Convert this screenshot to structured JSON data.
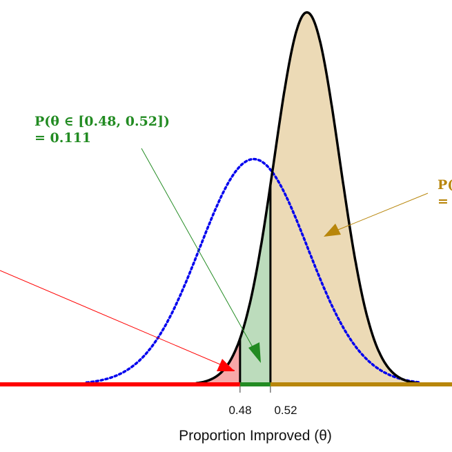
{
  "chart_data": {
    "type": "area",
    "xlabel": "Proportion Improved (θ)",
    "xlim": [
      0.164,
      0.759
    ],
    "x_ticks": [
      "0.48",
      "0.52"
    ],
    "x_tick_values": [
      0.48,
      0.52
    ],
    "grid": false,
    "series": [
      {
        "kind": "posterior",
        "style": "solid black line, shaded by region",
        "mean": 0.568,
        "sd": 0.043,
        "peak_density": 9.28
      },
      {
        "kind": "prior",
        "style": "blue dotted line",
        "mean": 0.498,
        "sd": 0.071,
        "peak_density": 5.6
      }
    ],
    "regions": [
      {
        "range": [
          0.164,
          0.48
        ],
        "color": "#ff0000",
        "fill": "#f7a8a8"
      },
      {
        "range": [
          0.48,
          0.52
        ],
        "color": "#228b22",
        "fill": "#bcdcbc"
      },
      {
        "range": [
          0.52,
          0.759
        ],
        "color": "#b8860b",
        "fill": "#ecdab6"
      }
    ],
    "annotations": [
      {
        "line1": "P(θ ∈ [0.48, 0.52])",
        "line2": "= 0.111",
        "color": "#228b22"
      },
      {
        "line1": "P(",
        "line2": "=",
        "color": "#b8860b"
      }
    ],
    "colors": {
      "prior": "#0000ee",
      "posterior": "#000000"
    }
  }
}
